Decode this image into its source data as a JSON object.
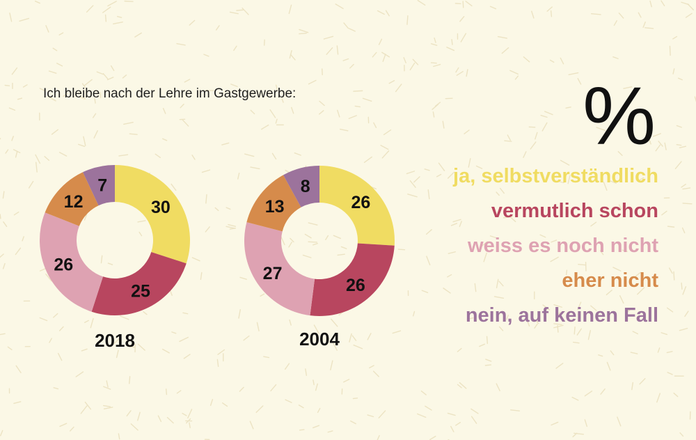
{
  "unit_symbol": "%",
  "colors": {
    "background": "#fbf8e6",
    "pattern": "#ece3c3",
    "categories": [
      "#f0dc62",
      "#b8465f",
      "#dea2b2",
      "#d68b4b",
      "#9c739c"
    ]
  },
  "chart_data": {
    "type": "donut",
    "title": "Ich bleibe nach der Lehre im Gastgewerbe:",
    "legend_position": "right",
    "categories": [
      "ja, selbstverständlich",
      "vermutlich schon",
      "weiss es noch nicht",
      "eher nicht",
      "nein, auf keinen Fall"
    ],
    "series": [
      {
        "name": "2018",
        "values": [
          30,
          25,
          26,
          12,
          7
        ]
      },
      {
        "name": "2004",
        "values": [
          26,
          26,
          27,
          13,
          8
        ]
      }
    ]
  }
}
